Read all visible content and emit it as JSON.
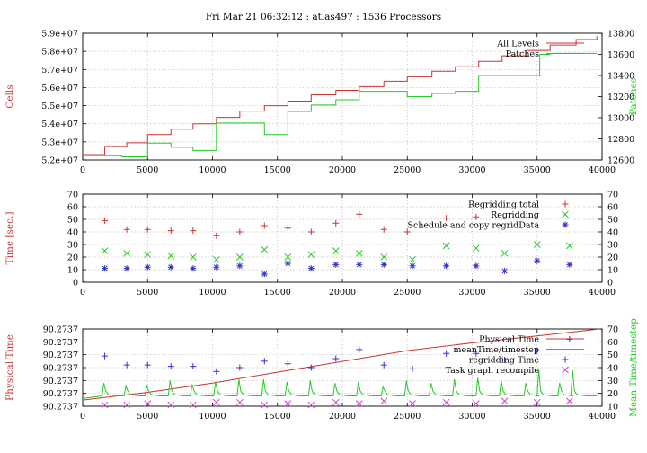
{
  "title": "Fri Mar 21 06:32:12 : atlas497 : 1536 Processors",
  "colors": {
    "red": "#cc3333",
    "green": "#22cc22",
    "blue": "#3333cc",
    "magenta": "#cc44cc",
    "grid": "#b4b4b4",
    "axis": "#000000",
    "text": "#000000"
  },
  "chart_data": [
    {
      "type": "line",
      "ylabel": "Cells",
      "y2label": "Patches",
      "xlim": [
        0,
        40000
      ],
      "ylim": [
        52000000,
        59000000
      ],
      "y2lim": [
        12600,
        13800
      ],
      "x_ticks": [
        "0",
        "5000",
        "10000",
        "15000",
        "20000",
        "25000",
        "30000",
        "35000",
        "40000"
      ],
      "y_ticks": [
        "5.2e+07",
        "5.3e+07",
        "5.4e+07",
        "5.5e+07",
        "5.6e+07",
        "5.7e+07",
        "5.8e+07",
        "5.9e+07"
      ],
      "y2_ticks": [
        "12600",
        "12800",
        "13000",
        "13200",
        "13400",
        "13600",
        "13800"
      ],
      "grid": true,
      "legend_position": "top-right",
      "series": [
        {
          "name": "All Levels",
          "axis": "left",
          "color": "#cc3333",
          "step": true,
          "x": [
            0,
            1700,
            3400,
            5000,
            6800,
            8500,
            10300,
            12100,
            14000,
            15800,
            17600,
            19500,
            21300,
            23200,
            25000,
            26900,
            28700,
            30500,
            32300,
            34200,
            36000,
            38000,
            39600
          ],
          "y": [
            52300000,
            52750000,
            52950000,
            53400000,
            53700000,
            54000000,
            54350000,
            54700000,
            55000000,
            55250000,
            55600000,
            55850000,
            56050000,
            56350000,
            56600000,
            56900000,
            57150000,
            57450000,
            57750000,
            58050000,
            58350000,
            58650000,
            58850000
          ]
        },
        {
          "name": "Patches",
          "axis": "right",
          "color": "#22cc22",
          "step": true,
          "x": [
            0,
            3000,
            5000,
            6800,
            8500,
            10300,
            12100,
            14000,
            15800,
            17600,
            19500,
            21300,
            23200,
            25000,
            26900,
            28700,
            30500,
            32300,
            34200,
            35200,
            36000,
            37000,
            39600
          ],
          "y": [
            12640,
            12630,
            12760,
            12720,
            12690,
            12950,
            12950,
            12840,
            13060,
            13120,
            13170,
            13250,
            13250,
            13200,
            13230,
            13250,
            13400,
            13400,
            13400,
            13600,
            13610,
            13610,
            13610
          ]
        }
      ]
    },
    {
      "type": "scatter",
      "ylabel": "Time [sec.]",
      "xlim": [
        0,
        40000
      ],
      "ylim": [
        0,
        70
      ],
      "y2lim": [
        0,
        70
      ],
      "x_ticks": [
        "0",
        "5000",
        "10000",
        "15000",
        "20000",
        "25000",
        "30000",
        "35000",
        "40000"
      ],
      "y_ticks": [
        "0",
        "10",
        "20",
        "30",
        "40",
        "50",
        "60",
        "70"
      ],
      "y2_ticks": [
        "0",
        "10",
        "20",
        "30",
        "40",
        "50",
        "60",
        "70"
      ],
      "grid": true,
      "legend_position": "top-right",
      "series": [
        {
          "name": "Regridding total",
          "marker": "plus",
          "color": "#cc3333",
          "x": [
            1700,
            3400,
            5000,
            6800,
            8500,
            10300,
            12100,
            14000,
            15800,
            17600,
            19500,
            21300,
            23200,
            25000,
            28000,
            30300
          ],
          "y": [
            49,
            42,
            42,
            41,
            41,
            37,
            40,
            45,
            43,
            40,
            47,
            54,
            42,
            40,
            51,
            52
          ]
        },
        {
          "name": "Regridding",
          "marker": "x",
          "color": "#22cc22",
          "x": [
            1700,
            3400,
            5000,
            6800,
            8500,
            10300,
            12100,
            14000,
            15800,
            17600,
            19500,
            21300,
            23200,
            25400,
            28000,
            30300,
            32500,
            35000,
            37500
          ],
          "y": [
            25,
            23,
            22,
            21,
            20,
            18,
            20,
            26,
            20,
            22,
            25,
            23,
            20,
            18,
            29,
            27,
            23,
            30,
            29
          ]
        },
        {
          "name": "Schedule and copy regridData",
          "marker": "star",
          "color": "#3333cc",
          "x": [
            1700,
            3400,
            5000,
            6800,
            8500,
            10300,
            12100,
            14000,
            15800,
            17600,
            19500,
            21300,
            23200,
            25400,
            28000,
            30300,
            32500,
            35000,
            37500
          ],
          "y": [
            11,
            11,
            12,
            12,
            11,
            12,
            13,
            6.5,
            15,
            11,
            14,
            14,
            14,
            13,
            13,
            13,
            9,
            17,
            14
          ]
        }
      ]
    },
    {
      "type": "line",
      "ylabel": "Physical Time",
      "y2label": "Mean Time/timestep",
      "xlim": [
        0,
        40000
      ],
      "y2lim": [
        10,
        70
      ],
      "x_ticks": [
        "0",
        "5000",
        "10000",
        "15000",
        "20000",
        "25000",
        "30000",
        "35000",
        "40000"
      ],
      "y_ticks": [
        "90.2737",
        "90.2737",
        "90.2737",
        "90.2737",
        "90.2737",
        "90.2737",
        "90.2737"
      ],
      "y2_ticks": [
        "10",
        "20",
        "30",
        "40",
        "50",
        "60",
        "70"
      ],
      "grid": true,
      "legend_position": "top-right",
      "series": [
        {
          "name": "Physical Time",
          "axis": "left",
          "type": "line",
          "color": "#cc3333",
          "x": [
            0,
            5000,
            10000,
            15000,
            20000,
            25000,
            30000,
            35000,
            39800
          ],
          "y_fraction": [
            0.08,
            0.18,
            0.3,
            0.44,
            0.58,
            0.72,
            0.82,
            0.91,
            1.0
          ]
        },
        {
          "name": "meanTime/timestep",
          "axis": "right",
          "type": "line",
          "color": "#22cc22",
          "baseline": 18,
          "spikes": [
            {
              "x": 1700,
              "y": 28
            },
            {
              "x": 3400,
              "y": 26
            },
            {
              "x": 5000,
              "y": 26
            },
            {
              "x": 6800,
              "y": 30
            },
            {
              "x": 8500,
              "y": 27
            },
            {
              "x": 10300,
              "y": 29
            },
            {
              "x": 12100,
              "y": 31
            },
            {
              "x": 14000,
              "y": 31
            },
            {
              "x": 15800,
              "y": 29
            },
            {
              "x": 17600,
              "y": 30
            },
            {
              "x": 19500,
              "y": 28
            },
            {
              "x": 21300,
              "y": 29
            },
            {
              "x": 23200,
              "y": 25
            },
            {
              "x": 25000,
              "y": 30
            },
            {
              "x": 26900,
              "y": 28
            },
            {
              "x": 28700,
              "y": 31
            },
            {
              "x": 30500,
              "y": 32
            },
            {
              "x": 32300,
              "y": 30
            },
            {
              "x": 34200,
              "y": 28
            },
            {
              "x": 35200,
              "y": 38
            },
            {
              "x": 36800,
              "y": 28
            },
            {
              "x": 37800,
              "y": 38
            }
          ]
        },
        {
          "name": "regridding Time",
          "axis": "right",
          "marker": "plus",
          "color": "#3333cc",
          "x": [
            1700,
            3400,
            5000,
            6800,
            8500,
            10300,
            12100,
            14000,
            15800,
            17600,
            19500,
            21300,
            23200,
            25400,
            28000,
            30300,
            32500,
            35000,
            37500
          ],
          "y": [
            49,
            42,
            42,
            41,
            41,
            37,
            40,
            45,
            43,
            40,
            47,
            54,
            42,
            39,
            51,
            51,
            46,
            53,
            62
          ]
        },
        {
          "name": "Task graph recompile",
          "axis": "right",
          "marker": "x",
          "color": "#cc44cc",
          "x": [
            1700,
            3400,
            5000,
            6800,
            8500,
            10300,
            12100,
            14000,
            15800,
            17600,
            19500,
            21300,
            23200,
            25400,
            28000,
            30300,
            32500,
            35000,
            37500
          ],
          "y": [
            11,
            11,
            12,
            11,
            11,
            13,
            13,
            11,
            12,
            11,
            13,
            12,
            14,
            12,
            13,
            12,
            14,
            13,
            14
          ]
        }
      ]
    }
  ]
}
